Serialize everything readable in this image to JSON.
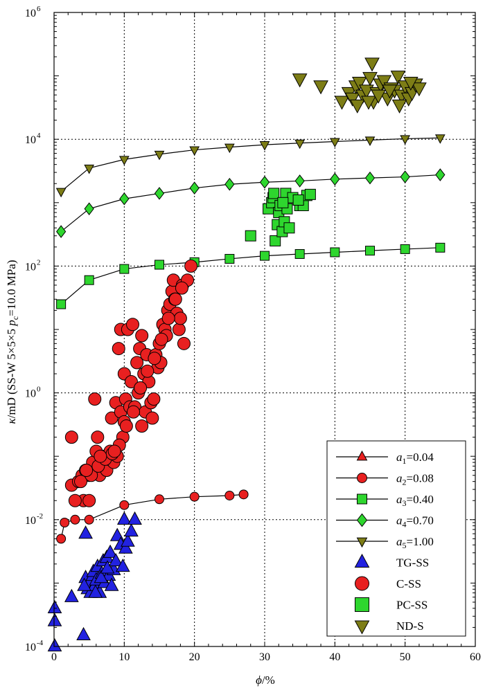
{
  "chart_data": {
    "type": "scatter",
    "title": "",
    "xlabel": "ϕ/%",
    "ylabel": "κ/mD (SS-W 5×5×5 p_c=10.0 MPa)",
    "ylabel_parts": {
      "kappa": "κ",
      "rest": "/mD (SS-W 5×5×5 ",
      "p": "p",
      "sub": "c",
      "tail": "=10.0 MPa)"
    },
    "xlabel_parts": {
      "phi": "ϕ",
      "unit": "/%"
    },
    "xlim": [
      0,
      60
    ],
    "ylim_log10": [
      -4,
      6
    ],
    "x_ticks": [
      0,
      10,
      20,
      30,
      40,
      50,
      60
    ],
    "x_tick_labels": [
      "0",
      "10",
      "20",
      "30",
      "40",
      "50",
      "60"
    ],
    "y_ticks_exp": [
      -4,
      -2,
      0,
      2,
      4,
      6
    ],
    "y_tick_labels": [
      {
        "base": "10",
        "exp": "-4"
      },
      {
        "base": "10",
        "exp": "-2"
      },
      {
        "base": "10",
        "exp": "0"
      },
      {
        "base": "10",
        "exp": "2"
      },
      {
        "base": "10",
        "exp": "4"
      },
      {
        "base": "10",
        "exp": "6"
      }
    ],
    "grid": true,
    "legend_position": "bottom-right",
    "model_lines": [
      {
        "name": "a1=0.04",
        "label_sym": "a",
        "label_sub": "1",
        "label_val": "=0.04",
        "marker": "triangle-up",
        "color": "#e82020",
        "x": [],
        "y": []
      },
      {
        "name": "a2=0.08",
        "label_sym": "a",
        "label_sub": "2",
        "label_val": "=0.08",
        "marker": "circle",
        "color": "#e82020",
        "x": [
          1,
          1.5,
          3,
          5,
          10,
          15,
          20,
          25,
          27
        ],
        "y": [
          0.005,
          0.009,
          0.01,
          0.01,
          0.017,
          0.021,
          0.023,
          0.024,
          0.025
        ]
      },
      {
        "name": "a3=0.40",
        "label_sym": "a",
        "label_sub": "3",
        "label_val": "=0.40",
        "marker": "square",
        "color": "#2ed62e",
        "x": [
          1,
          5,
          10,
          15,
          20,
          25,
          30,
          35,
          40,
          45,
          50,
          55
        ],
        "y": [
          25,
          60,
          90,
          105,
          115,
          130,
          145,
          155,
          165,
          175,
          185,
          195
        ]
      },
      {
        "name": "a4=0.70",
        "label_sym": "a",
        "label_sub": "4",
        "label_val": "=0.70",
        "marker": "diamond",
        "color": "#2ed62e",
        "x": [
          1,
          5,
          10,
          15,
          20,
          25,
          30,
          35,
          40,
          45,
          50,
          55
        ],
        "y": [
          350,
          800,
          1150,
          1400,
          1700,
          1950,
          2100,
          2200,
          2350,
          2450,
          2550,
          2750
        ]
      },
      {
        "name": "a5=1.00",
        "label_sym": "a",
        "label_sub": "5",
        "label_val": "=1.00",
        "marker": "triangle-down",
        "color": "#7d7d16",
        "x": [
          1,
          5,
          10,
          15,
          20,
          25,
          30,
          35,
          40,
          45,
          50,
          55
        ],
        "y": [
          1500,
          3500,
          4800,
          5800,
          6800,
          7500,
          8200,
          8700,
          9200,
          9700,
          10200,
          10500
        ]
      }
    ],
    "scatter_series": [
      {
        "name": "TG-SS",
        "marker": "triangle-up",
        "color": "#2222e0",
        "x": [
          0.1,
          0.1,
          0.1,
          2.5,
          4.2,
          4.5,
          4.5,
          4.8,
          5.0,
          5.2,
          5.5,
          5.6,
          5.8,
          6.0,
          6.2,
          6.5,
          6.8,
          7.0,
          7.2,
          7.5,
          7.8,
          8.0,
          8.2,
          8.5,
          9.0,
          9.5,
          10.0,
          10.2,
          10.5,
          11.0,
          11.5,
          4.3,
          5.9,
          6.7,
          7.6,
          8.8,
          9.8
        ],
        "y": [
          0.0004,
          0.00025,
          0.0001,
          0.0006,
          0.00015,
          0.006,
          0.0012,
          0.0008,
          0.001,
          0.0007,
          0.0013,
          0.0015,
          0.0009,
          0.0011,
          0.0018,
          0.0007,
          0.0014,
          0.0022,
          0.001,
          0.0025,
          0.0013,
          0.003,
          0.0009,
          0.0016,
          0.0055,
          0.004,
          0.01,
          0.0035,
          0.0045,
          0.0065,
          0.01,
          0.0009,
          0.0007,
          0.0012,
          0.0017,
          0.0022,
          0.0018
        ]
      },
      {
        "name": "C-SS",
        "marker": "circle",
        "color": "#e82020",
        "x": [
          2.5,
          2.5,
          3.5,
          4.0,
          4.2,
          4.5,
          5.0,
          5.0,
          5.5,
          5.8,
          6.0,
          6.2,
          6.5,
          6.8,
          7.0,
          7.2,
          7.5,
          7.8,
          8.0,
          8.2,
          8.5,
          8.8,
          9.0,
          9.2,
          9.5,
          9.5,
          9.8,
          10.0,
          10.0,
          10.2,
          10.5,
          10.8,
          11.0,
          11.2,
          11.5,
          11.8,
          12.0,
          12.2,
          12.5,
          12.5,
          12.8,
          13.0,
          13.2,
          13.5,
          13.8,
          14.0,
          14.2,
          14.5,
          14.8,
          15.0,
          15.2,
          15.5,
          15.8,
          16.0,
          16.2,
          16.5,
          16.8,
          17.0,
          17.2,
          17.5,
          17.8,
          18.0,
          18.3,
          18.5,
          19.0,
          19.5,
          3.0,
          3.8,
          5.3,
          6.3,
          7.3,
          8.3,
          9.3,
          10.3,
          11.3,
          12.3,
          13.3,
          14.3,
          15.3,
          16.3,
          17.3,
          18.2,
          4.6,
          6.6,
          8.6
        ],
        "y": [
          0.2,
          0.035,
          0.04,
          0.05,
          0.02,
          0.06,
          0.05,
          0.02,
          0.08,
          0.8,
          0.12,
          0.2,
          0.05,
          0.08,
          0.09,
          0.1,
          0.06,
          0.09,
          0.12,
          0.4,
          0.08,
          0.7,
          0.1,
          5,
          0.5,
          10,
          0.2,
          2,
          0.35,
          0.8,
          10,
          0.6,
          1.5,
          12,
          0.6,
          3,
          1.0,
          5,
          0.3,
          8,
          2,
          0.5,
          4,
          1.5,
          0.7,
          0.4,
          0.8,
          4,
          2.5,
          6,
          3,
          12,
          10,
          8,
          20,
          25,
          40,
          60,
          30,
          18,
          10,
          15,
          50,
          6,
          60,
          100,
          0.02,
          0.04,
          0.05,
          0.07,
          0.09,
          0.11,
          0.15,
          0.3,
          0.5,
          1.2,
          2.2,
          3.5,
          7,
          15,
          30,
          45,
          0.06,
          0.1,
          0.12
        ]
      },
      {
        "name": "PC-SS",
        "marker": "square",
        "color": "#2ed62e",
        "x": [
          28.0,
          30.5,
          31.0,
          31.2,
          31.5,
          31.8,
          32.0,
          32.2,
          32.5,
          32.8,
          33.0,
          33.2,
          33.5,
          34.0,
          35.0,
          35.5,
          36.0,
          36.5,
          31.3,
          32.6,
          34.8
        ],
        "y": [
          300,
          800,
          1000,
          1200,
          250,
          450,
          700,
          900,
          350,
          500,
          1400,
          800,
          400,
          1200,
          900,
          900,
          1300,
          1350,
          1400,
          1000,
          1100
        ]
      },
      {
        "name": "ND-S",
        "marker": "triangle-down",
        "color": "#7d7d16",
        "x": [
          35.0,
          38.0,
          41.0,
          42.0,
          42.5,
          43.0,
          43.5,
          44.0,
          44.5,
          45.0,
          45.5,
          46.0,
          46.5,
          47.0,
          47.5,
          48.0,
          48.5,
          49.0,
          49.5,
          50.0,
          50.5,
          51.0,
          51.5,
          52.0,
          43.2,
          44.8,
          46.2,
          47.8,
          49.2,
          50.8,
          45.3
        ],
        "y": [
          90000,
          70000,
          40000,
          55000,
          45000,
          70000,
          80000,
          50000,
          60000,
          95000,
          40000,
          55000,
          75000,
          85000,
          45000,
          65000,
          60000,
          100000,
          50000,
          70000,
          45000,
          55000,
          75000,
          65000,
          35000,
          40000,
          50000,
          60000,
          35000,
          80000,
          160000
        ]
      }
    ]
  }
}
